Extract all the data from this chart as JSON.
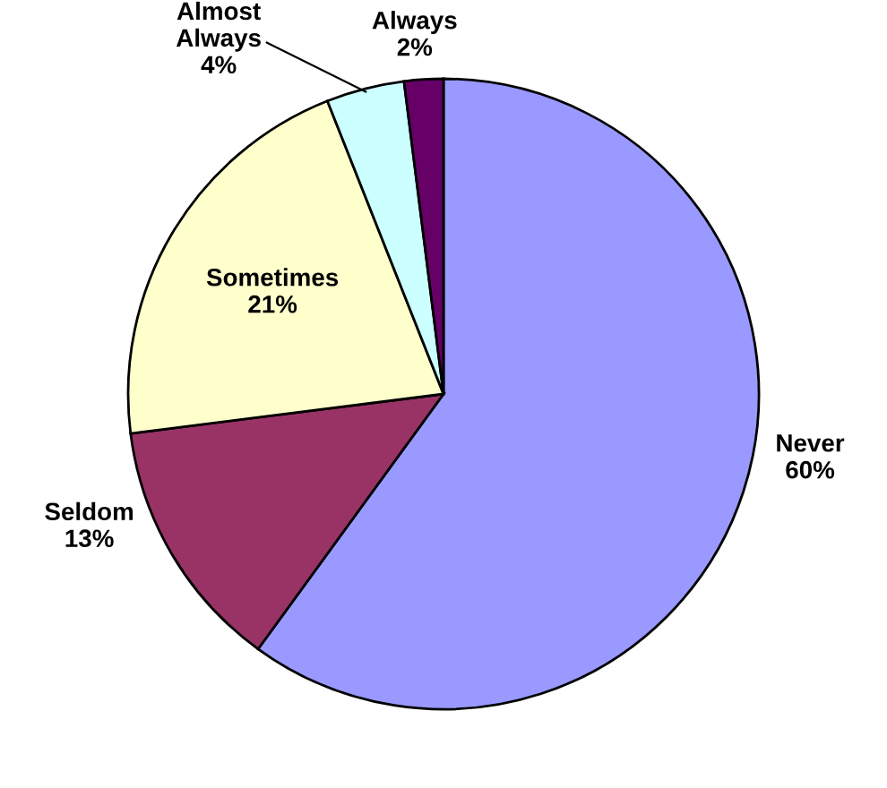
{
  "chart_data": {
    "type": "pie",
    "categories": [
      "Never",
      "Seldom",
      "Sometimes",
      "Almost\nAlways",
      "Always"
    ],
    "values": [
      60,
      13,
      21,
      4,
      2
    ],
    "value_labels": [
      "60%",
      "13%",
      "21%",
      "4%",
      "2%"
    ],
    "colors": [
      "#9999ff",
      "#993366",
      "#ffffcc",
      "#ccffff",
      "#660066"
    ],
    "legend": false
  }
}
